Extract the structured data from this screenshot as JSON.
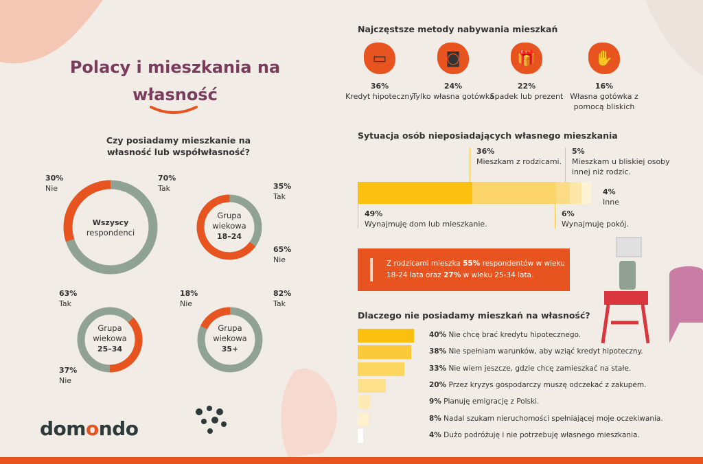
{
  "title": "Polacy i mieszkania na własność",
  "ownership": {
    "question": "Czy posiadamy mieszkanie na własność lub współwłasność?",
    "groups": [
      {
        "name": "Wszyscy respondenci",
        "yes": 70,
        "no": 30,
        "yes_label": "70%",
        "no_label": "30%"
      },
      {
        "name": "Grupa wiekowa 18–24",
        "yes": 35,
        "no": 65,
        "yes_label": "35%",
        "no_label": "65%"
      },
      {
        "name": "Grupa wiekowa 25–34",
        "yes": 63,
        "no": 37,
        "yes_label": "63%",
        "no_label": "37%"
      },
      {
        "name": "Grupa wiekowa 35+",
        "yes": 82,
        "no": 18,
        "yes_label": "82%",
        "no_label": "18%"
      }
    ],
    "yes_text": "Tak",
    "no_text": "Nie",
    "colors": {
      "yes": "#8fa293",
      "no": "#e8541f"
    }
  },
  "methods": {
    "title": "Najczęstsze metody nabywania mieszkań",
    "items": [
      {
        "pct": "36%",
        "label": "Kredyt hipoteczny",
        "icon": "credit-card-icon"
      },
      {
        "pct": "24%",
        "label": "Tylko własna gotówka",
        "icon": "cash-icon"
      },
      {
        "pct": "22%",
        "label": "Spadek lub prezent",
        "icon": "gift-card-icon"
      },
      {
        "pct": "16%",
        "label": "Własna gotówka z pomocą bliskich",
        "icon": "hand-money-icon"
      }
    ]
  },
  "situation": {
    "title": "Sytuacja osób nieposiadających własnego mieszkania",
    "segments": [
      {
        "pct": 49,
        "label": "49%",
        "text": "Wynajmuję dom lub mieszkanie.",
        "color": "#fbbf0f"
      },
      {
        "pct": 36,
        "label": "36%",
        "text": "Mieszkam z rodzicami.",
        "color": "#fcd56a"
      },
      {
        "pct": 6,
        "label": "6%",
        "text": "Wynajmuję pokój.",
        "color": "#fcdc82"
      },
      {
        "pct": 5,
        "label": "5%",
        "text": "Mieszkam u bliskiej osoby innej niż rodzic.",
        "color": "#fce6a8"
      },
      {
        "pct": 4,
        "label": "4%",
        "text": "Inne",
        "color": "#fdf4d8"
      }
    ],
    "callout": {
      "pre": "Z rodzicami mieszka ",
      "b1": "55%",
      "mid": " respondentów w wieku 18-24 lata oraz ",
      "b2": "27%",
      "post": " w wieku 25-34 lata."
    }
  },
  "reasons": {
    "title": "Dlaczego nie posiadamy mieszkań na własność?",
    "items": [
      {
        "pct": 40,
        "label": "40%",
        "text": "Nie chcę brać kredytu hipotecznego.",
        "color": "#fbbf0f"
      },
      {
        "pct": 38,
        "label": "38%",
        "text": "Nie spełniam warunków, aby wziąć kredyt hipoteczny.",
        "color": "#fcc93a"
      },
      {
        "pct": 33,
        "label": "33%",
        "text": "Nie wiem jeszcze, gdzie chcę zamieszkać na stałe.",
        "color": "#fcd65f"
      },
      {
        "pct": 20,
        "label": "20%",
        "text": "Przez kryzys gospodarczy muszę odczekać z zakupem.",
        "color": "#fce08c"
      },
      {
        "pct": 9,
        "label": "9%",
        "text": "Planuję emigrację z Polski.",
        "color": "#fdeab4"
      },
      {
        "pct": 8,
        "label": "8%",
        "text": "Nadal szukam nieruchomości spełniającej moje oczekiwania.",
        "color": "#fdf0cc"
      },
      {
        "pct": 4,
        "label": "4%",
        "text": "Dużo podróżuję i nie potrzebuję własnego mieszkania.",
        "color": "#ffffff"
      }
    ]
  },
  "logo": {
    "a": "dom",
    "b": "o",
    "c": "ndo"
  }
}
